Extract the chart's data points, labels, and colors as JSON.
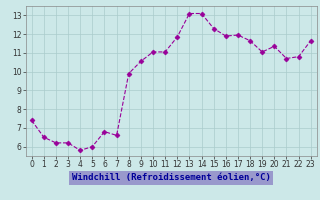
{
  "x": [
    0,
    1,
    2,
    3,
    4,
    5,
    6,
    7,
    8,
    9,
    10,
    11,
    12,
    13,
    14,
    15,
    16,
    17,
    18,
    19,
    20,
    21,
    22,
    23
  ],
  "y": [
    7.4,
    6.5,
    6.2,
    6.2,
    5.8,
    6.0,
    6.8,
    6.6,
    9.9,
    10.55,
    11.05,
    11.05,
    11.85,
    13.1,
    13.1,
    12.3,
    11.9,
    11.95,
    11.65,
    11.05,
    11.35,
    10.7,
    10.8,
    11.65
  ],
  "line_color": "#990099",
  "marker": "D",
  "marker_size": 2.5,
  "bg_color": "#cce8e8",
  "grid_color": "#aacccc",
  "xlabel": "Windchill (Refroidissement éolien,°C)",
  "xlabel_color": "#000099",
  "xlabel_bg": "#9999cc",
  "ylim": [
    5.5,
    13.5
  ],
  "xlim": [
    -0.5,
    23.5
  ],
  "yticks": [
    6,
    7,
    8,
    9,
    10,
    11,
    12,
    13
  ],
  "xticks": [
    0,
    1,
    2,
    3,
    4,
    5,
    6,
    7,
    8,
    9,
    10,
    11,
    12,
    13,
    14,
    15,
    16,
    17,
    18,
    19,
    20,
    21,
    22,
    23
  ],
  "tick_fontsize": 5.5,
  "xlabel_fontsize": 6.5
}
